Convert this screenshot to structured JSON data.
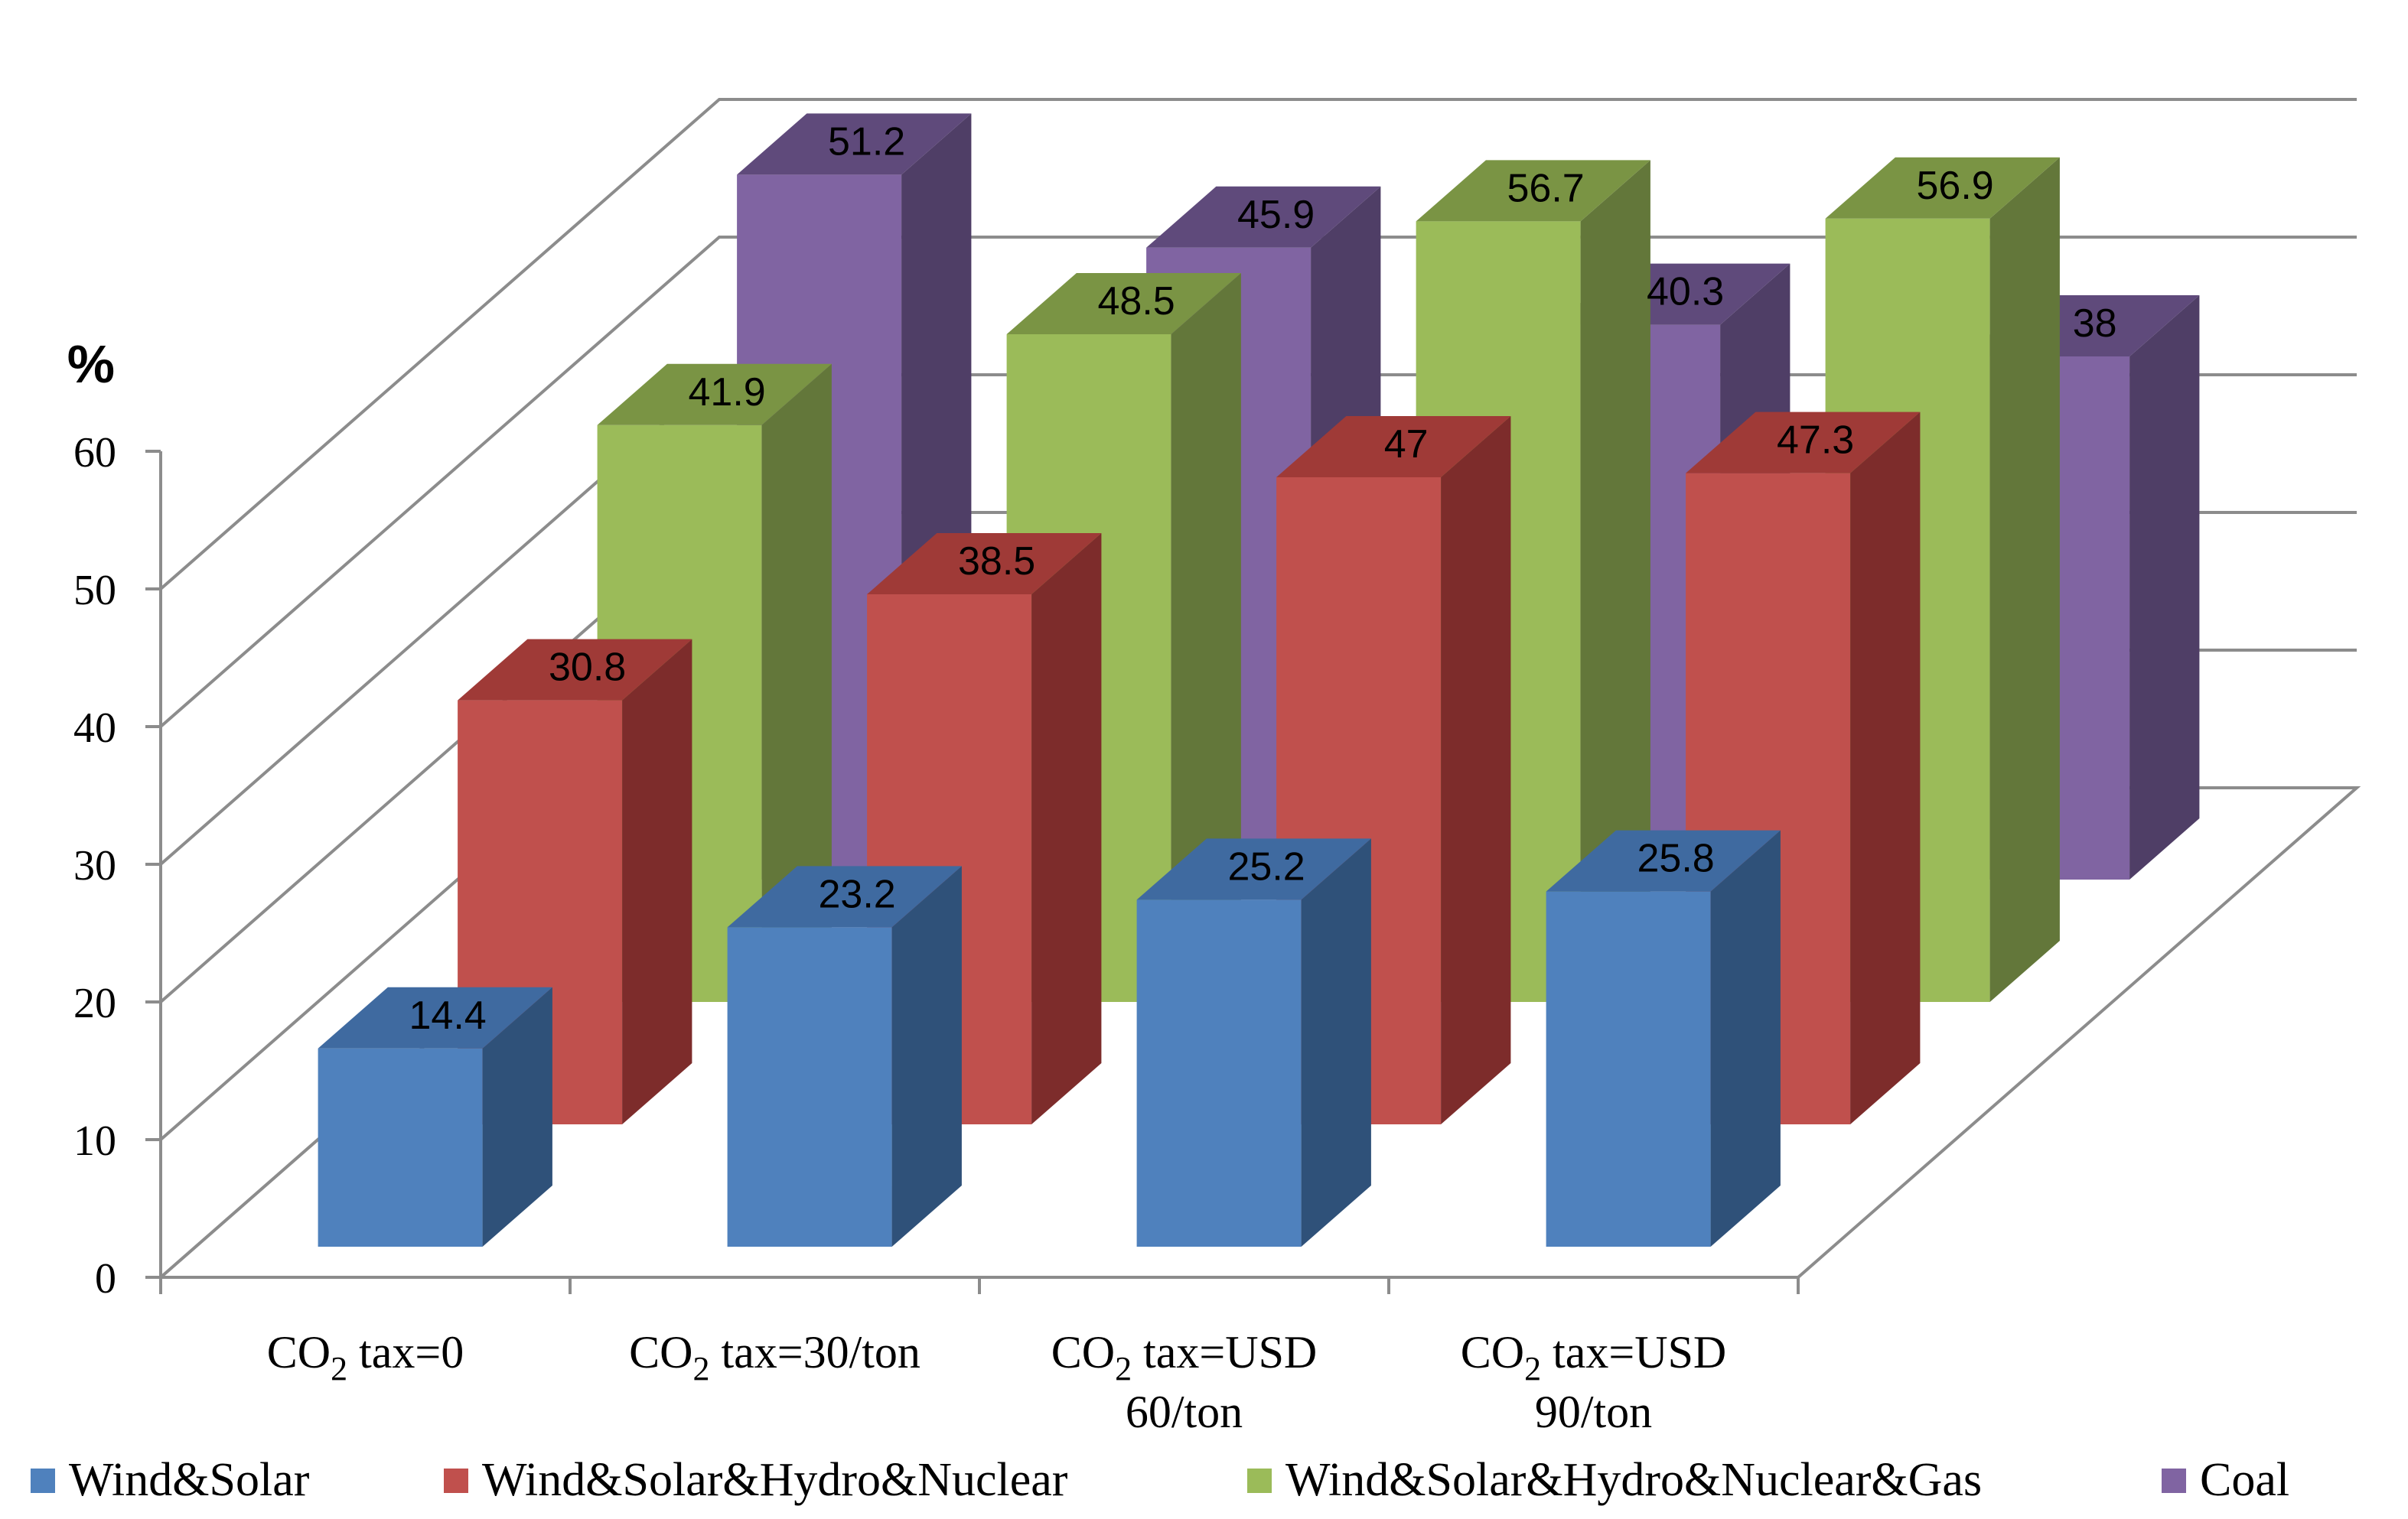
{
  "chart_data": {
    "type": "bar",
    "style": "3d-column",
    "ylabel": "%",
    "xlabel": "",
    "ylim": [
      0,
      60
    ],
    "yticks": [
      0,
      10,
      20,
      30,
      40,
      50,
      60
    ],
    "grid": true,
    "legend_position": "bottom",
    "categories": [
      {
        "name": "CO2 tax=0",
        "lines": [
          {
            "pre": "CO",
            "sub": "2",
            "post": " tax=0"
          }
        ]
      },
      {
        "name": "CO2 tax=30/ton",
        "lines": [
          {
            "pre": "CO",
            "sub": "2",
            "post": " tax=30/ton"
          }
        ]
      },
      {
        "name": "CO2 tax=USD 60/ton",
        "lines": [
          {
            "pre": "CO",
            "sub": "2",
            "post": " tax=USD"
          },
          {
            "pre": "60/ton",
            "sub": "",
            "post": ""
          }
        ]
      },
      {
        "name": "CO2 tax=USD 90/ton",
        "lines": [
          {
            "pre": "CO",
            "sub": "2",
            "post": " tax=USD"
          },
          {
            "pre": "90/ton",
            "sub": "",
            "post": ""
          }
        ]
      }
    ],
    "series": [
      {
        "name": "Wind&Solar",
        "values": [
          14.4,
          23.2,
          25.2,
          25.8
        ],
        "labels": [
          "14.4",
          "23.2",
          "25.2",
          "25.8"
        ],
        "color": "#4f81bd",
        "side_color": "#2f5179",
        "top_color": "#3f6aa0"
      },
      {
        "name": "Wind&Solar&Hydro&Nuclear",
        "values": [
          30.8,
          38.5,
          47,
          47.3
        ],
        "labels": [
          "30.8",
          "38.5",
          "47",
          "47.3"
        ],
        "color": "#c0504d",
        "side_color": "#7d2c2b",
        "top_color": "#9f3a37"
      },
      {
        "name": "Wind&Solar&Hydro&Nuclear&Gas",
        "values": [
          41.9,
          48.5,
          56.7,
          56.9
        ],
        "labels": [
          "41.9",
          "48.5",
          "56.7",
          "56.9"
        ],
        "color": "#9bbb59",
        "side_color": "#63773a",
        "top_color": "#7a9444"
      },
      {
        "name": "Coal",
        "values": [
          51.2,
          45.9,
          40.3,
          38
        ],
        "labels": [
          "51.2",
          "45.9",
          "40.3",
          "38"
        ],
        "color": "#8064a2",
        "side_color": "#4f3e66",
        "top_color": "#5f4a7b"
      }
    ]
  }
}
